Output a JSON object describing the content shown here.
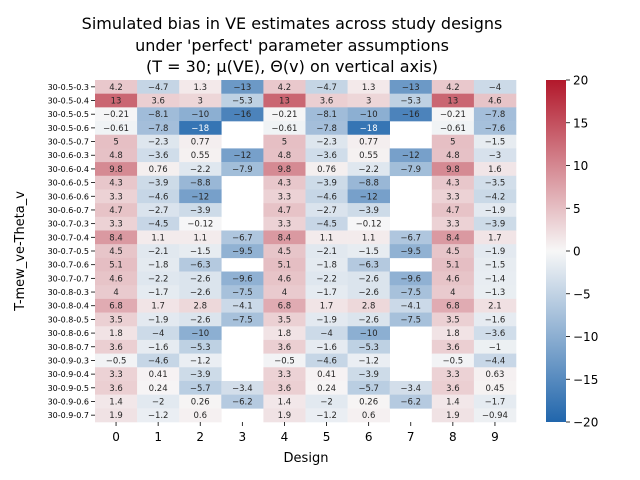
{
  "chart_data": {
    "type": "heatmap",
    "title_lines": [
      "Simulated bias in VE estimates across study designs",
      "under 'perfect' parameter assumptions",
      "(T = 30; μ(VE), Θ(v) on vertical axis)"
    ],
    "xlabel": "Design",
    "ylabel": "T-mew_ve-Theta_v",
    "x": [
      "0",
      "1",
      "2",
      "3",
      "4",
      "5",
      "6",
      "7",
      "8",
      "9"
    ],
    "y": [
      "30-0.5-0.3",
      "30-0.5-0.4",
      "30-0.5-0.5",
      "30-0.5-0.6",
      "30-0.5-0.7",
      "30-0.6-0.3",
      "30-0.6-0.4",
      "30-0.6-0.5",
      "30-0.6-0.6",
      "30-0.6-0.7",
      "30-0.7-0.3",
      "30-0.7-0.4",
      "30-0.7-0.5",
      "30-0.7-0.6",
      "30-0.7-0.7",
      "30-0.8-0.3",
      "30-0.8-0.4",
      "30-0.8-0.5",
      "30-0.8-0.6",
      "30-0.8-0.7",
      "30-0.9-0.3",
      "30-0.9-0.4",
      "30-0.9-0.5",
      "30-0.9-0.6",
      "30-0.9-0.7"
    ],
    "values": [
      [
        4.2,
        -4.7,
        1.3,
        -13,
        4.2,
        -4.7,
        1.3,
        -13,
        4.2,
        -4
      ],
      [
        13,
        3.6,
        3,
        -5.3,
        13,
        3.6,
        3,
        -5.3,
        13,
        4.6
      ],
      [
        -0.21,
        -8.1,
        -10,
        -16,
        -0.21,
        -8.1,
        -10,
        -16,
        -0.21,
        -7.8
      ],
      [
        -0.61,
        -7.8,
        -18,
        null,
        -0.61,
        -7.8,
        -18,
        null,
        -0.61,
        -7.6
      ],
      [
        5,
        -2.3,
        0.77,
        null,
        5,
        -2.3,
        0.77,
        null,
        5,
        -1.5
      ],
      [
        4.8,
        -3.6,
        0.55,
        -12,
        4.8,
        -3.6,
        0.55,
        -12,
        4.8,
        -3
      ],
      [
        9.8,
        0.76,
        -2.2,
        -7.9,
        9.8,
        0.76,
        -2.2,
        -7.9,
        9.8,
        1.6
      ],
      [
        4.3,
        -3.9,
        -8.8,
        null,
        4.3,
        -3.9,
        -8.8,
        null,
        4.3,
        -3.5
      ],
      [
        3.3,
        -4.6,
        -12,
        null,
        3.3,
        -4.6,
        -12,
        null,
        3.3,
        -4.2
      ],
      [
        4.7,
        -2.7,
        -3.9,
        null,
        4.7,
        -2.7,
        -3.9,
        null,
        4.7,
        -1.9
      ],
      [
        3.3,
        -4.5,
        -0.12,
        null,
        3.3,
        -4.5,
        -0.12,
        null,
        3.3,
        -3.9
      ],
      [
        8.4,
        1.1,
        1.1,
        -6.7,
        8.4,
        1.1,
        1.1,
        -6.7,
        8.4,
        1.7
      ],
      [
        4.5,
        -2.1,
        -1.5,
        -9.5,
        4.5,
        -2.1,
        -1.5,
        -9.5,
        4.5,
        -1.9
      ],
      [
        5.1,
        -1.8,
        -6.3,
        null,
        5.1,
        -1.8,
        -6.3,
        null,
        5.1,
        -1.5
      ],
      [
        4.6,
        -2.2,
        -2.6,
        -9.6,
        4.6,
        -2.2,
        -2.6,
        -9.6,
        4.6,
        -1.4
      ],
      [
        4,
        -1.7,
        -2.6,
        -7.5,
        4,
        -1.7,
        -2.6,
        -7.5,
        4,
        -1.3
      ],
      [
        6.8,
        1.7,
        2.8,
        -4.1,
        6.8,
        1.7,
        2.8,
        -4.1,
        6.8,
        2.1
      ],
      [
        3.5,
        -1.9,
        -2.6,
        -7.5,
        3.5,
        -1.9,
        -2.6,
        -7.5,
        3.5,
        -1.6
      ],
      [
        1.8,
        -4,
        -10,
        null,
        1.8,
        -4,
        -10,
        null,
        1.8,
        -3.6
      ],
      [
        3.6,
        -1.6,
        -5.3,
        null,
        3.6,
        -1.6,
        -5.3,
        null,
        3.6,
        -1
      ],
      [
        -0.5,
        -4.6,
        -1.2,
        null,
        -0.5,
        -4.6,
        -1.2,
        null,
        -0.5,
        -4.4
      ],
      [
        3.3,
        0.41,
        -3.9,
        null,
        3.3,
        0.41,
        -3.9,
        null,
        3.3,
        0.63
      ],
      [
        3.6,
        0.24,
        -5.7,
        -3.4,
        3.6,
        0.24,
        -5.7,
        -3.4,
        3.6,
        0.45
      ],
      [
        1.4,
        -2,
        0.26,
        -6.2,
        1.4,
        -2,
        0.26,
        -6.2,
        1.4,
        -1.7
      ],
      [
        1.9,
        -1.2,
        0.6,
        null,
        1.9,
        -1.2,
        0.6,
        null,
        1.9,
        -0.94
      ]
    ],
    "colorbar": {
      "vmin": -20,
      "vmax": 20,
      "ticks": [
        20,
        15,
        10,
        5,
        0,
        -5,
        -10,
        -15,
        -20
      ],
      "tick_labels": [
        "20",
        "15",
        "10",
        "5",
        "0",
        "−5",
        "−10",
        "−15",
        "−20"
      ],
      "colors": [
        "#2166ac",
        "#f7f7f7",
        "#b2182b"
      ]
    },
    "legend": "colorbar-right",
    "grid": false
  }
}
